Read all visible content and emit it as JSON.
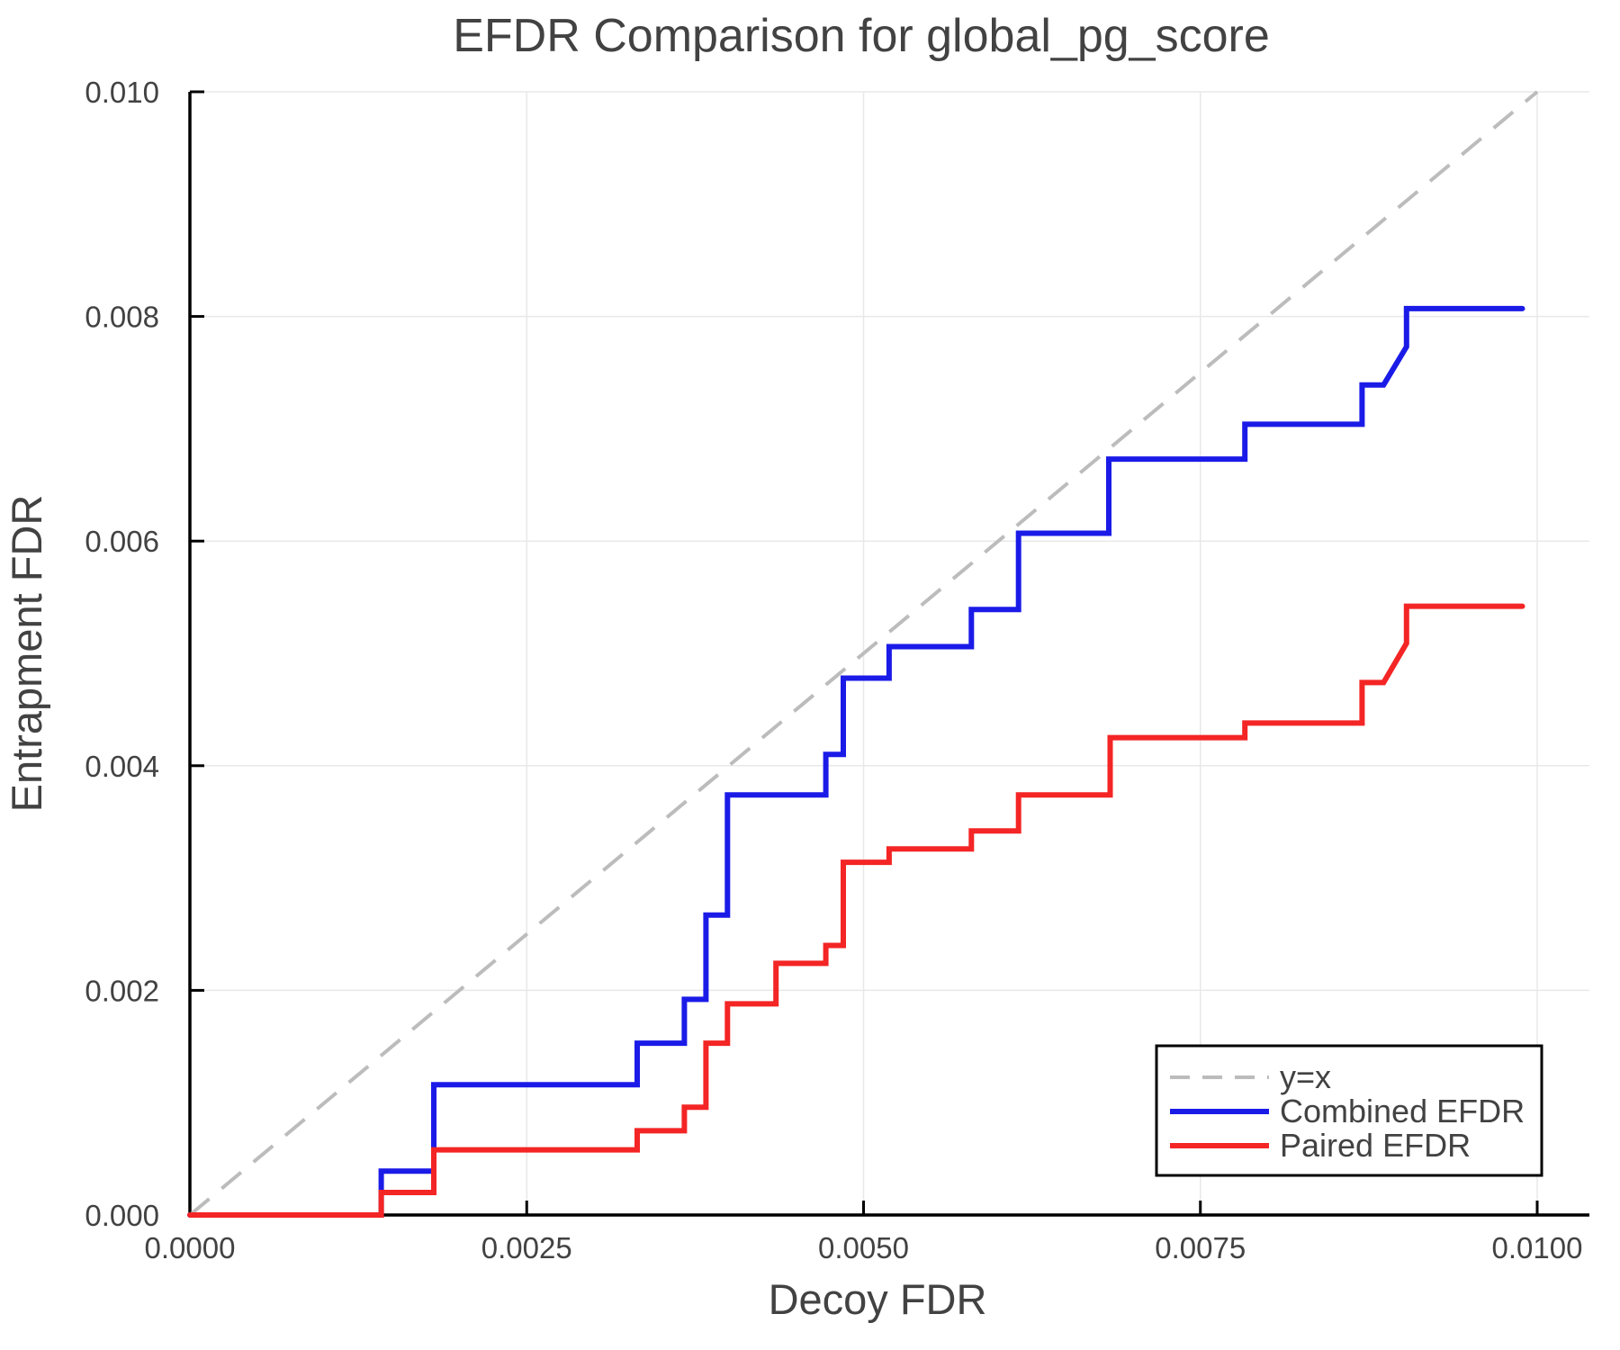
{
  "chart_data": {
    "type": "line",
    "title": "EFDR Comparison for global_pg_score",
    "xlabel": "Decoy FDR",
    "ylabel": "Entrapment FDR",
    "xlim": [
      0.0,
      0.0104
    ],
    "ylim": [
      0.0,
      0.01
    ],
    "grid": true,
    "colors": {
      "background": "#ffffff",
      "text": "#424242",
      "grid": "#e8e8e8",
      "axis": "#000000",
      "identity_line": "#bcbcbc",
      "combined": "#1b1be8",
      "paired": "#f42525"
    },
    "x_ticks": {
      "values": [
        0.0,
        0.0025,
        0.005,
        0.0075,
        0.01
      ],
      "labels": [
        "0.0000",
        "0.0025",
        "0.0050",
        "0.0075",
        "0.0100"
      ]
    },
    "y_ticks": {
      "values": [
        0.0,
        0.002,
        0.004,
        0.006,
        0.008,
        0.01
      ],
      "labels": [
        "0.000",
        "0.002",
        "0.004",
        "0.006",
        "0.008",
        "0.010"
      ]
    },
    "legend": {
      "position": "lower right",
      "entries": [
        "y=x",
        "Combined EFDR",
        "Paired EFDR"
      ]
    },
    "series": [
      {
        "name": "y=x",
        "style": "dashed",
        "color": "#bcbcbc",
        "width": 4,
        "points": [
          [
            0.0,
            0.0
          ],
          [
            0.01,
            0.01
          ]
        ]
      },
      {
        "name": "Combined EFDR",
        "style": "solid",
        "color": "#1b1be8",
        "width": 6,
        "points": [
          [
            0.0,
            0.0
          ],
          [
            0.00142,
            0.0
          ],
          [
            0.00142,
            0.00039
          ],
          [
            0.00181,
            0.00039
          ],
          [
            0.00181,
            0.00116
          ],
          [
            0.00332,
            0.00116
          ],
          [
            0.00332,
            0.00153
          ],
          [
            0.00367,
            0.00153
          ],
          [
            0.00367,
            0.00192
          ],
          [
            0.00383,
            0.00192
          ],
          [
            0.00383,
            0.00267
          ],
          [
            0.00399,
            0.00267
          ],
          [
            0.00399,
            0.00374
          ],
          [
            0.00472,
            0.00374
          ],
          [
            0.00472,
            0.0041
          ],
          [
            0.00485,
            0.0041
          ],
          [
            0.00485,
            0.00478
          ],
          [
            0.00519,
            0.00478
          ],
          [
            0.00519,
            0.00506
          ],
          [
            0.0058,
            0.00506
          ],
          [
            0.0058,
            0.00539
          ],
          [
            0.00615,
            0.00539
          ],
          [
            0.00615,
            0.00607
          ],
          [
            0.00682,
            0.00607
          ],
          [
            0.00682,
            0.00673
          ],
          [
            0.00783,
            0.00673
          ],
          [
            0.00783,
            0.00704
          ],
          [
            0.0087,
            0.00704
          ],
          [
            0.0087,
            0.00739
          ],
          [
            0.00886,
            0.00739
          ],
          [
            0.00903,
            0.00773
          ],
          [
            0.00903,
            0.00807
          ],
          [
            0.00989,
            0.00807
          ]
        ]
      },
      {
        "name": "Paired EFDR",
        "style": "solid",
        "color": "#f42525",
        "width": 6,
        "points": [
          [
            0.0,
            0.0
          ],
          [
            0.00142,
            0.0
          ],
          [
            0.00142,
            0.0002
          ],
          [
            0.00181,
            0.0002
          ],
          [
            0.00181,
            0.00058
          ],
          [
            0.00332,
            0.00058
          ],
          [
            0.00332,
            0.00075
          ],
          [
            0.00367,
            0.00075
          ],
          [
            0.00367,
            0.00096
          ],
          [
            0.00383,
            0.00096
          ],
          [
            0.00383,
            0.00153
          ],
          [
            0.00399,
            0.00153
          ],
          [
            0.00399,
            0.00188
          ],
          [
            0.00435,
            0.00188
          ],
          [
            0.00435,
            0.00224
          ],
          [
            0.00472,
            0.00224
          ],
          [
            0.00472,
            0.0024
          ],
          [
            0.00485,
            0.0024
          ],
          [
            0.00485,
            0.00314
          ],
          [
            0.00519,
            0.00314
          ],
          [
            0.00519,
            0.00326
          ],
          [
            0.0058,
            0.00326
          ],
          [
            0.0058,
            0.00342
          ],
          [
            0.00615,
            0.00342
          ],
          [
            0.00615,
            0.00374
          ],
          [
            0.00683,
            0.00374
          ],
          [
            0.00683,
            0.00425
          ],
          [
            0.00783,
            0.00425
          ],
          [
            0.00783,
            0.00438
          ],
          [
            0.0087,
            0.00438
          ],
          [
            0.0087,
            0.00474
          ],
          [
            0.00886,
            0.00474
          ],
          [
            0.00903,
            0.00509
          ],
          [
            0.00903,
            0.00542
          ],
          [
            0.00989,
            0.00542
          ]
        ]
      }
    ]
  }
}
